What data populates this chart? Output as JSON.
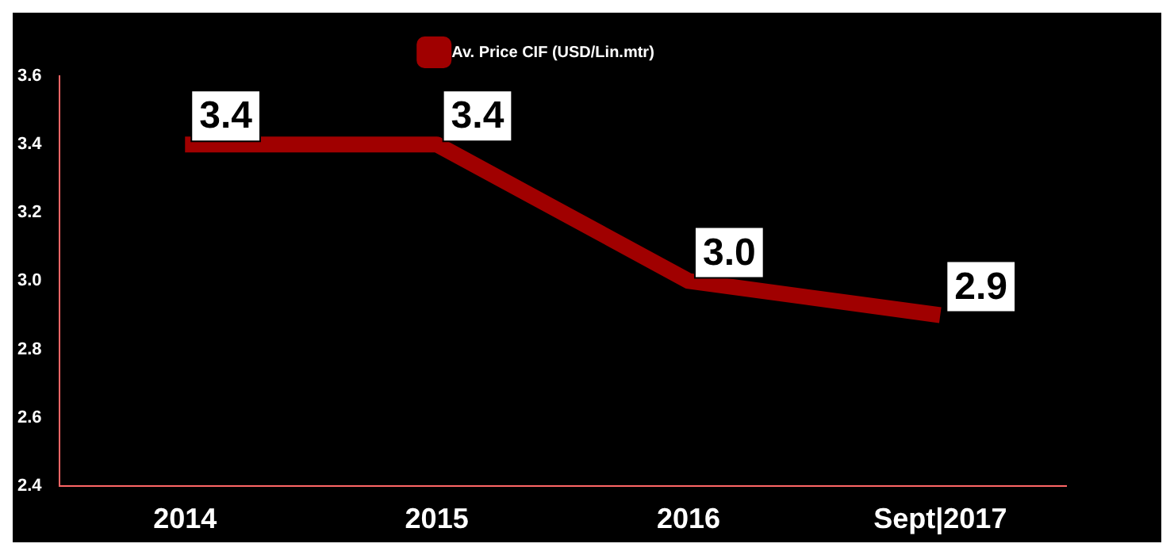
{
  "chart_data": {
    "type": "line",
    "categories": [
      "2014",
      "2015",
      "2016",
      "Sept|2017"
    ],
    "series": [
      {
        "name": "Av. Price CIF (USD/Lin.mtr)",
        "color": "#a00000",
        "values": [
          3.4,
          3.4,
          3.0,
          2.9
        ],
        "value_labels": [
          "3.4",
          "3.4",
          "3.0",
          "2.9"
        ]
      }
    ],
    "ylim": [
      2.4,
      3.6
    ],
    "yticks": [
      {
        "value": 2.4,
        "label": "2.4"
      },
      {
        "value": 2.6,
        "label": "2.6"
      },
      {
        "value": 2.8,
        "label": "2.8"
      },
      {
        "value": 3.0,
        "label": "3.0"
      },
      {
        "value": 3.2,
        "label": "3.2"
      },
      {
        "value": 3.4,
        "label": "3.4"
      },
      {
        "value": 3.6,
        "label": "3.6"
      }
    ],
    "legend": "top",
    "marker": "none"
  }
}
